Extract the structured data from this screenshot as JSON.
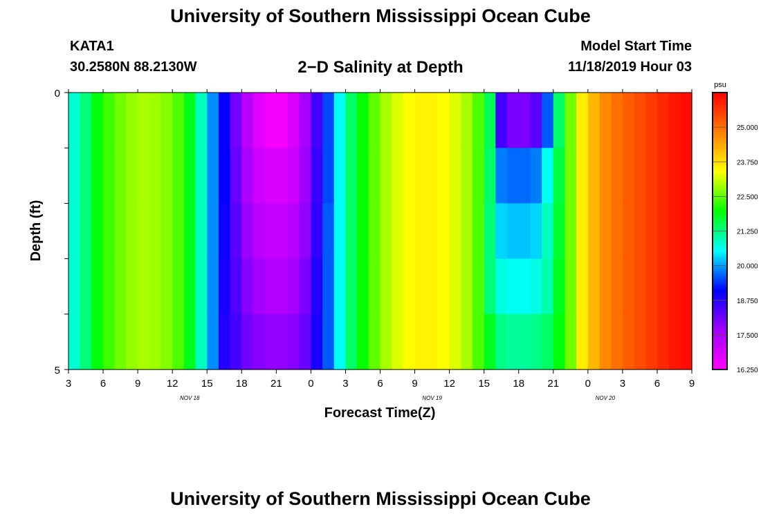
{
  "header": {
    "title": "University of Southern Mississippi Ocean Cube",
    "station_id": "KATA1",
    "station_coords": "30.2580N 88.2130W",
    "chart_title": "2−D Salinity at Depth",
    "start_label": "Model Start Time",
    "start_value": "11/18/2019 Hour 03"
  },
  "footer": {
    "title": "University of Southern Mississippi Ocean Cube"
  },
  "chart_data": {
    "type": "heatmap",
    "title": "2−D Salinity at Depth",
    "xlabel": "Forecast Time(Z)",
    "ylabel": "Depth (ft)",
    "x_ticks": [
      "3",
      "6",
      "9",
      "12",
      "15",
      "18",
      "21",
      "0",
      "3",
      "6",
      "9",
      "12",
      "15",
      "18",
      "21",
      "0",
      "3",
      "6",
      "9"
    ],
    "date_labels": [
      {
        "text": "NOV 18",
        "after_tick": 3
      },
      {
        "text": "NOV 19",
        "after_tick": 10
      },
      {
        "text": "NOV 20",
        "after_tick": 15
      }
    ],
    "x_range_hours": [
      0,
      54
    ],
    "y_ticks": [
      "0",
      "5"
    ],
    "y_range_ft": [
      0,
      5
    ],
    "depth_layers": 5,
    "colorbar": {
      "unit": "psu",
      "min": 16.25,
      "max": 26.25,
      "tick_values": [
        25.0,
        23.75,
        22.5,
        21.25,
        20.0,
        18.75,
        17.5,
        16.25
      ],
      "tick_labels": [
        "25.000",
        "23.750",
        "22.500",
        "21.250",
        "20.000",
        "18.750",
        "17.500",
        "16.250"
      ],
      "stops": [
        "#ff00ff",
        "#a000ff",
        "#0000ff",
        "#00ffff",
        "#00ff00",
        "#ffff00",
        "#ff7f00",
        "#ff0000"
      ]
    },
    "series": [
      {
        "hour": 0,
        "values": [
          20.8,
          20.8,
          20.8,
          20.8,
          20.8
        ]
      },
      {
        "hour": 1,
        "values": [
          21.3,
          21.3,
          21.3,
          21.3,
          21.3
        ]
      },
      {
        "hour": 2,
        "values": [
          21.9,
          21.9,
          21.9,
          21.9,
          21.9
        ]
      },
      {
        "hour": 3,
        "values": [
          22.3,
          22.3,
          22.3,
          22.3,
          22.3
        ]
      },
      {
        "hour": 4,
        "values": [
          22.6,
          22.6,
          22.6,
          22.6,
          22.6
        ]
      },
      {
        "hour": 5,
        "values": [
          22.8,
          22.8,
          22.8,
          22.8,
          22.8
        ]
      },
      {
        "hour": 6,
        "values": [
          22.9,
          22.9,
          22.9,
          22.9,
          22.9
        ]
      },
      {
        "hour": 7,
        "values": [
          22.85,
          22.85,
          22.85,
          22.85,
          22.85
        ]
      },
      {
        "hour": 8,
        "values": [
          22.7,
          22.7,
          22.7,
          22.7,
          22.7
        ]
      },
      {
        "hour": 9,
        "values": [
          22.4,
          22.4,
          22.4,
          22.4,
          22.4
        ]
      },
      {
        "hour": 10,
        "values": [
          21.8,
          21.8,
          21.8,
          21.8,
          21.8
        ]
      },
      {
        "hour": 11,
        "values": [
          20.9,
          20.9,
          20.9,
          20.9,
          20.9
        ]
      },
      {
        "hour": 12,
        "values": [
          19.9,
          19.9,
          19.9,
          19.9,
          19.9
        ]
      },
      {
        "hour": 13,
        "values": [
          19.1,
          19.1,
          19.0,
          18.9,
          18.8
        ]
      },
      {
        "hour": 14,
        "values": [
          18.1,
          18.2,
          18.3,
          18.4,
          18.5
        ]
      },
      {
        "hour": 15,
        "values": [
          17.3,
          17.5,
          17.7,
          17.9,
          18.1
        ]
      },
      {
        "hour": 16,
        "values": [
          16.7,
          17.0,
          17.3,
          17.6,
          17.9
        ]
      },
      {
        "hour": 17,
        "values": [
          16.4,
          16.8,
          17.1,
          17.4,
          17.8
        ]
      },
      {
        "hour": 18,
        "values": [
          16.4,
          16.8,
          17.1,
          17.4,
          17.8
        ]
      },
      {
        "hour": 19,
        "values": [
          16.8,
          17.0,
          17.3,
          17.6,
          17.9
        ]
      },
      {
        "hour": 20,
        "values": [
          17.6,
          17.7,
          17.8,
          18.0,
          18.2
        ]
      },
      {
        "hour": 21,
        "values": [
          18.5,
          18.6,
          18.7,
          18.8,
          18.9
        ]
      },
      {
        "hour": 22,
        "values": [
          19.5,
          19.5,
          19.6,
          19.6,
          19.6
        ]
      },
      {
        "hour": 23,
        "values": [
          20.6,
          20.6,
          20.6,
          20.6,
          20.6
        ]
      },
      {
        "hour": 24,
        "values": [
          21.4,
          21.4,
          21.4,
          21.4,
          21.4
        ]
      },
      {
        "hour": 25,
        "values": [
          22.0,
          22.0,
          22.0,
          22.0,
          22.0
        ]
      },
      {
        "hour": 26,
        "values": [
          22.5,
          22.5,
          22.5,
          22.5,
          22.5
        ]
      },
      {
        "hour": 27,
        "values": [
          22.9,
          22.9,
          22.9,
          22.9,
          22.9
        ]
      },
      {
        "hour": 28,
        "values": [
          23.2,
          23.2,
          23.2,
          23.2,
          23.2
        ]
      },
      {
        "hour": 29,
        "values": [
          23.4,
          23.4,
          23.4,
          23.4,
          23.4
        ]
      },
      {
        "hour": 30,
        "values": [
          23.5,
          23.5,
          23.5,
          23.5,
          23.5
        ]
      },
      {
        "hour": 31,
        "values": [
          23.5,
          23.5,
          23.5,
          23.5,
          23.5
        ]
      },
      {
        "hour": 32,
        "values": [
          23.4,
          23.4,
          23.4,
          23.4,
          23.4
        ]
      },
      {
        "hour": 33,
        "values": [
          23.2,
          23.2,
          23.2,
          23.2,
          23.2
        ]
      },
      {
        "hour": 34,
        "values": [
          22.9,
          22.9,
          22.9,
          22.9,
          22.9
        ]
      },
      {
        "hour": 35,
        "values": [
          22.4,
          22.4,
          22.4,
          22.4,
          22.4
        ]
      },
      {
        "hour": 36,
        "values": [
          21.5,
          21.4,
          21.3,
          21.3,
          21.8
        ]
      },
      {
        "hour": 37,
        "values": [
          18.5,
          19.8,
          20.3,
          20.7,
          21.2
        ]
      },
      {
        "hour": 38,
        "values": [
          18.0,
          19.7,
          20.2,
          20.6,
          21.1
        ]
      },
      {
        "hour": 39,
        "values": [
          18.0,
          19.7,
          20.2,
          20.6,
          21.1
        ]
      },
      {
        "hour": 40,
        "values": [
          18.3,
          19.8,
          20.3,
          20.7,
          21.2
        ]
      },
      {
        "hour": 41,
        "values": [
          19.6,
          20.6,
          20.9,
          21.0,
          21.4
        ]
      },
      {
        "hour": 42,
        "values": [
          21.4,
          21.6,
          21.7,
          21.8,
          21.9
        ]
      },
      {
        "hour": 43,
        "values": [
          22.6,
          22.6,
          22.6,
          22.6,
          22.6
        ]
      },
      {
        "hour": 44,
        "values": [
          23.6,
          23.6,
          23.6,
          23.6,
          23.6
        ]
      },
      {
        "hour": 45,
        "values": [
          24.2,
          24.2,
          24.2,
          24.2,
          24.2
        ]
      },
      {
        "hour": 46,
        "values": [
          24.7,
          24.7,
          24.7,
          24.7,
          24.7
        ]
      },
      {
        "hour": 47,
        "values": [
          25.0,
          25.0,
          25.0,
          25.0,
          25.0
        ]
      },
      {
        "hour": 48,
        "values": [
          25.2,
          25.2,
          25.2,
          25.2,
          25.2
        ]
      },
      {
        "hour": 49,
        "values": [
          25.4,
          25.4,
          25.4,
          25.4,
          25.4
        ]
      },
      {
        "hour": 50,
        "values": [
          25.6,
          25.6,
          25.6,
          25.6,
          25.6
        ]
      },
      {
        "hour": 51,
        "values": [
          25.8,
          25.8,
          25.8,
          25.8,
          25.8
        ]
      },
      {
        "hour": 52,
        "values": [
          26.0,
          26.0,
          26.0,
          26.0,
          26.0
        ]
      },
      {
        "hour": 53,
        "values": [
          26.1,
          26.1,
          26.1,
          26.1,
          26.1
        ]
      }
    ]
  }
}
